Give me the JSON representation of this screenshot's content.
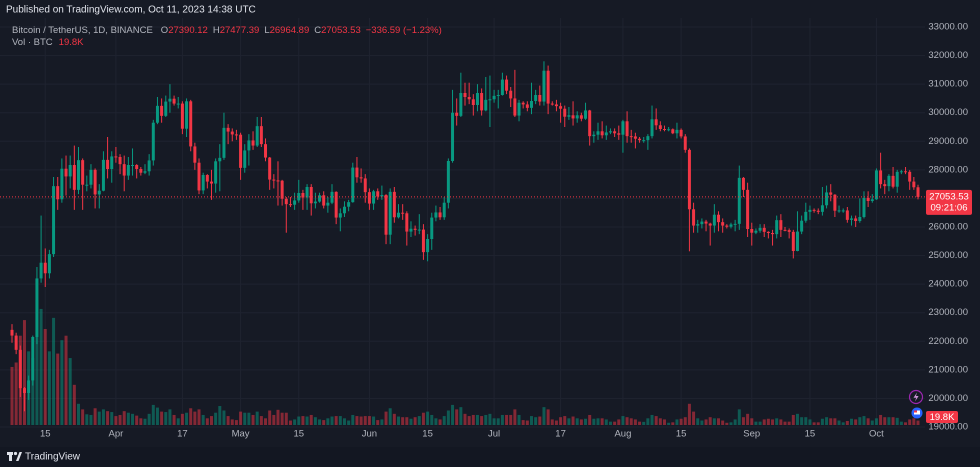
{
  "header": {
    "published": "Published on TradingView.com, Oct 11, 2023 14:38 UTC"
  },
  "footer": {
    "brand": "TradingView"
  },
  "chart_data": {
    "type": "candlestick",
    "title": "Bitcoin / TetherUS, 1D, BINANCE",
    "ohlc_letters": [
      "O",
      "H",
      "L",
      "C"
    ],
    "change": "−336.59 (−1.23%)",
    "volume_title": "Vol · BTC",
    "volume_last_label": "19.8K",
    "countdown": "09:21:06",
    "up_color": "#089981",
    "down_color": "#f23645",
    "grid": true,
    "ylim": [
      18930,
      33315
    ],
    "yticks": [
      {
        "value": 19000,
        "label": "19000.00"
      },
      {
        "value": 20000,
        "label": "20000.00"
      },
      {
        "value": 21000,
        "label": "21000.00"
      },
      {
        "value": 22000,
        "label": "22000.00"
      },
      {
        "value": 23000,
        "label": "23000.00"
      },
      {
        "value": 24000,
        "label": "24000.00"
      },
      {
        "value": 25000,
        "label": "25000.00"
      },
      {
        "value": 26000,
        "label": "26000.00"
      },
      {
        "value": 27000,
        "label": "27000.00"
      },
      {
        "value": 28000,
        "label": "28000.00"
      },
      {
        "value": 29000,
        "label": "29000.00"
      },
      {
        "value": 30000,
        "label": "30000.00"
      },
      {
        "value": 31000,
        "label": "31000.00"
      },
      {
        "value": 32000,
        "label": "32000.00"
      },
      {
        "value": 33000,
        "label": "33000.00"
      }
    ],
    "categories": [
      null,
      null,
      null,
      null,
      null,
      null,
      null,
      null,
      "15",
      null,
      null,
      null,
      null,
      null,
      null,
      null,
      null,
      null,
      null,
      null,
      null,
      null,
      null,
      null,
      null,
      "Apr",
      null,
      null,
      null,
      null,
      null,
      null,
      null,
      null,
      null,
      null,
      null,
      null,
      null,
      null,
      null,
      "17",
      null,
      null,
      null,
      null,
      null,
      null,
      null,
      null,
      null,
      null,
      null,
      null,
      null,
      "May",
      null,
      null,
      null,
      null,
      null,
      null,
      null,
      null,
      null,
      null,
      null,
      null,
      null,
      "15",
      null,
      null,
      null,
      null,
      null,
      null,
      null,
      null,
      null,
      null,
      null,
      null,
      null,
      null,
      null,
      null,
      "Jun",
      null,
      null,
      null,
      null,
      null,
      null,
      null,
      null,
      null,
      null,
      null,
      null,
      null,
      "15",
      null,
      null,
      null,
      null,
      null,
      null,
      null,
      null,
      null,
      null,
      null,
      null,
      null,
      null,
      null,
      "Jul",
      null,
      null,
      null,
      null,
      null,
      null,
      null,
      null,
      null,
      null,
      null,
      null,
      null,
      null,
      null,
      "17",
      null,
      null,
      null,
      null,
      null,
      null,
      null,
      null,
      null,
      null,
      null,
      null,
      null,
      null,
      "Aug",
      null,
      null,
      null,
      null,
      null,
      null,
      null,
      null,
      null,
      null,
      null,
      null,
      null,
      "15",
      null,
      null,
      null,
      null,
      null,
      null,
      null,
      null,
      null,
      null,
      null,
      null,
      null,
      null,
      null,
      null,
      "Sep",
      null,
      null,
      null,
      null,
      null,
      null,
      null,
      null,
      null,
      null,
      null,
      null,
      null,
      "15",
      null,
      null,
      null,
      null,
      null,
      null,
      null,
      null,
      null,
      null,
      null,
      null,
      null,
      null,
      null,
      "Oct",
      null,
      null,
      null,
      null,
      null,
      null,
      null,
      null,
      null,
      null
    ],
    "open": [
      22400,
      22200,
      21700,
      20360,
      20190,
      20630,
      22150,
      24200,
      24750,
      24380,
      25050,
      27430,
      26970,
      28040,
      27770,
      28170,
      27300,
      28340,
      27480,
      27480,
      28000,
      27140,
      27270,
      28350,
      28030,
      28470,
      28450,
      28200,
      27800,
      28170,
      28170,
      28030,
      27900,
      27950,
      28330,
      29650,
      30240,
      29890,
      30390,
      30490,
      30320,
      30320,
      29440,
      30400,
      28820,
      28250,
      27280,
      27820,
      27590,
      27520,
      28300,
      28420,
      29470,
      29340,
      29240,
      29230,
      28070,
      28680,
      29030,
      28850,
      29530,
      28900,
      28430,
      27660,
      27630,
      27620,
      26990,
      26800,
      26780,
      26930,
      27190,
      27030,
      27400,
      26830,
      26890,
      27110,
      26750,
      26850,
      27230,
      26330,
      26480,
      26710,
      26870,
      28080,
      27740,
      27700,
      27220,
      26820,
      27250,
      27070,
      27120,
      25730,
      27230,
      26340,
      26500,
      26480,
      25840,
      25940,
      25900,
      25910,
      25120,
      25580,
      26330,
      26510,
      26340,
      26850,
      28310,
      30000,
      29890,
      30690,
      30550,
      30470,
      30270,
      30690,
      30080,
      30450,
      30470,
      30590,
      30620,
      31160,
      30770,
      30500,
      29900,
      30350,
      30290,
      30170,
      30410,
      30620,
      30390,
      31470,
      30320,
      30290,
      30230,
      30140,
      29860,
      29910,
      29800,
      29910,
      29790,
      30080,
      29180,
      29230,
      29350,
      29210,
      29310,
      29350,
      29280,
      29230,
      29700,
      29180,
      29170,
      29090,
      29040,
      29040,
      29180,
      29770,
      29560,
      29430,
      29400,
      29420,
      29280,
      29400,
      29170,
      28700,
      26620,
      26050,
      26100,
      26190,
      26120,
      26050,
      26430,
      26170,
      26050,
      26010,
      26090,
      26110,
      27720,
      27300,
      25930,
      25800,
      25870,
      25970,
      25830,
      25790,
      25750,
      26240,
      25900,
      25890,
      25830,
      25160,
      25840,
      26220,
      26530,
      26600,
      26570,
      26530,
      26760,
      27210,
      27130,
      26570,
      26580,
      26580,
      26250,
      26300,
      26210,
      26350,
      27020,
      26910,
      26970,
      27980,
      27500,
      27430,
      27790,
      27410,
      27930,
      27950,
      27930,
      27590,
      27390.12
    ],
    "high": [
      22600,
      22300,
      21850,
      20400,
      20800,
      22200,
      24600,
      26400,
      25250,
      25200,
      27750,
      27750,
      28400,
      28500,
      28500,
      28850,
      28800,
      28400,
      27800,
      28200,
      28050,
      27500,
      28650,
      29150,
      28650,
      28800,
      28550,
      28500,
      28450,
      28750,
      28200,
      28100,
      28200,
      28550,
      29750,
      30550,
      30500,
      30600,
      31000,
      30600,
      30550,
      30400,
      30500,
      30450,
      28950,
      28400,
      27900,
      27850,
      28000,
      28400,
      28900,
      30000,
      29600,
      29450,
      29400,
      29300,
      28900,
      29250,
      29350,
      29850,
      29850,
      29100,
      28450,
      27850,
      28300,
      27650,
      27050,
      27050,
      27200,
      27650,
      27300,
      27500,
      27500,
      27200,
      27200,
      27250,
      27050,
      27500,
      27250,
      26650,
      26900,
      26950,
      28250,
      28450,
      28050,
      27850,
      27350,
      27300,
      27350,
      27450,
      27150,
      27350,
      27400,
      26800,
      26800,
      26550,
      26200,
      26050,
      26450,
      26100,
      25750,
      26500,
      26750,
      26700,
      27050,
      28400,
      30800,
      30500,
      31400,
      31050,
      31050,
      30650,
      31000,
      30850,
      31250,
      31300,
      30800,
      30800,
      31400,
      31300,
      30900,
      31500,
      30450,
      30400,
      30400,
      31050,
      30800,
      30950,
      31800,
      31650,
      30400,
      30450,
      30350,
      30250,
      30200,
      30400,
      30050,
      30000,
      30350,
      30100,
      29350,
      29650,
      29700,
      29550,
      29450,
      29450,
      29550,
      29750,
      30050,
      29400,
      29300,
      29150,
      29150,
      29250,
      30250,
      30150,
      29700,
      29550,
      29500,
      29450,
      29650,
      29450,
      29250,
      28750,
      26850,
      26250,
      26300,
      26250,
      26150,
      26800,
      26550,
      26300,
      26100,
      26150,
      26250,
      28150,
      27750,
      27550,
      26150,
      25950,
      26100,
      26100,
      25850,
      25900,
      26400,
      26450,
      26000,
      25950,
      25900,
      26550,
      26400,
      26850,
      26750,
      26650,
      26650,
      27400,
      27450,
      27500,
      27150,
      26750,
      26650,
      26700,
      26400,
      26400,
      27000,
      27250,
      27250,
      27150,
      28050,
      28600,
      27650,
      27850,
      28100,
      28000,
      28000,
      28100,
      27990,
      27750,
      27477.39
    ],
    "low": [
      21950,
      21550,
      20050,
      19550,
      19950,
      20450,
      21900,
      24050,
      23900,
      24200,
      24950,
      26600,
      26850,
      27100,
      27350,
      26600,
      27150,
      26600,
      27250,
      27350,
      26650,
      26650,
      27250,
      27700,
      27550,
      28250,
      27850,
      27250,
      27650,
      27800,
      27700,
      27800,
      27850,
      27800,
      28150,
      29600,
      29650,
      29850,
      30000,
      30250,
      30150,
      29250,
      29150,
      28650,
      28000,
      27150,
      27150,
      27350,
      26950,
      27200,
      27250,
      28350,
      28900,
      29000,
      29050,
      27650,
      27900,
      28150,
      28700,
      28800,
      28800,
      28300,
      27300,
      27350,
      26750,
      26750,
      25800,
      26700,
      26600,
      26850,
      26600,
      26600,
      26400,
      26650,
      26850,
      26650,
      26500,
      26800,
      26100,
      25850,
      26350,
      26550,
      26850,
      27550,
      27550,
      26850,
      26600,
      26600,
      26950,
      26950,
      25400,
      25400,
      26150,
      26300,
      26250,
      25350,
      25650,
      25700,
      25750,
      24850,
      24800,
      25200,
      26200,
      26250,
      26250,
      26650,
      28250,
      29550,
      29850,
      30250,
      30300,
      29900,
      30050,
      29900,
      30050,
      29500,
      30350,
      30150,
      30600,
      30650,
      30200,
      29850,
      29700,
      30150,
      30050,
      29950,
      30300,
      30250,
      30250,
      29950,
      30250,
      30050,
      29650,
      29500,
      29750,
      29550,
      29650,
      29700,
      29750,
      28850,
      28950,
      29050,
      29100,
      29050,
      29250,
      29150,
      29050,
      28600,
      28950,
      28950,
      28750,
      28950,
      28950,
      28700,
      29100,
      29400,
      29350,
      29350,
      29350,
      29250,
      29100,
      29100,
      28600,
      25150,
      25800,
      25800,
      25950,
      25850,
      25350,
      25800,
      25850,
      25800,
      25950,
      25950,
      25850,
      25900,
      27050,
      25650,
      25350,
      25750,
      25800,
      25650,
      25600,
      25350,
      25600,
      25650,
      25850,
      25600,
      24900,
      25150,
      25750,
      26150,
      26250,
      26500,
      26450,
      26400,
      26650,
      26900,
      26350,
      26500,
      26500,
      26150,
      26050,
      26000,
      26150,
      26300,
      26700,
      26850,
      26950,
      27350,
      27150,
      27250,
      27350,
      27200,
      27850,
      27850,
      27300,
      27300,
      26964.89
    ],
    "close": [
      22200,
      21700,
      20360,
      20190,
      20630,
      22150,
      24200,
      24750,
      24380,
      25050,
      27430,
      26970,
      28040,
      27770,
      28170,
      27300,
      28340,
      27480,
      27480,
      28000,
      27140,
      27270,
      28350,
      28030,
      28470,
      28450,
      28200,
      27800,
      28170,
      28170,
      28030,
      27900,
      27950,
      28330,
      29650,
      30240,
      29890,
      30390,
      30490,
      30320,
      30320,
      29440,
      30400,
      28820,
      28250,
      27280,
      27820,
      27590,
      27520,
      28300,
      28420,
      29470,
      29340,
      29240,
      29230,
      28070,
      28680,
      29030,
      28850,
      29530,
      28900,
      28430,
      27660,
      27630,
      27620,
      26990,
      26800,
      26780,
      26930,
      27190,
      27030,
      27400,
      26830,
      26890,
      27110,
      26750,
      26850,
      27230,
      26330,
      26480,
      26710,
      26870,
      28080,
      27740,
      27700,
      27220,
      26820,
      27250,
      27070,
      27120,
      25730,
      27230,
      26340,
      26500,
      26480,
      25840,
      25940,
      25900,
      25910,
      25120,
      25580,
      26330,
      26510,
      26340,
      26850,
      28310,
      30000,
      29890,
      30690,
      30550,
      30470,
      30270,
      30690,
      30080,
      30450,
      30470,
      30590,
      30620,
      31160,
      30770,
      30500,
      29900,
      30350,
      30290,
      30170,
      30410,
      30620,
      30390,
      31470,
      30320,
      30290,
      30230,
      30140,
      29860,
      29910,
      29800,
      29910,
      29790,
      30080,
      29180,
      29230,
      29350,
      29210,
      29310,
      29350,
      29280,
      29230,
      29700,
      29180,
      29170,
      29090,
      29040,
      29040,
      29180,
      29770,
      29560,
      29430,
      29400,
      29420,
      29280,
      29400,
      29170,
      28700,
      26620,
      26050,
      26100,
      26190,
      26120,
      26050,
      26430,
      26170,
      26050,
      26010,
      26090,
      26110,
      27720,
      27300,
      25930,
      25800,
      25870,
      25970,
      25830,
      25790,
      25750,
      26240,
      25900,
      25890,
      25830,
      25160,
      25840,
      26220,
      26530,
      26600,
      26570,
      26530,
      26760,
      27210,
      27130,
      26570,
      26580,
      26580,
      26250,
      26300,
      26210,
      26350,
      27020,
      26910,
      26970,
      27980,
      27500,
      27430,
      27790,
      27410,
      27930,
      27950,
      27930,
      27590,
      27390.12,
      27053.53
    ],
    "volume": [
      260000,
      280000,
      400000,
      470000,
      330000,
      300000,
      560000,
      520000,
      430000,
      330000,
      480000,
      320000,
      380000,
      400000,
      300000,
      180000,
      95000,
      70000,
      48000,
      45000,
      75000,
      60000,
      70000,
      62000,
      58000,
      40000,
      45000,
      62000,
      55000,
      50000,
      42000,
      30000,
      28000,
      50000,
      90000,
      78000,
      60000,
      58000,
      70000,
      45000,
      30000,
      50000,
      55000,
      75000,
      60000,
      70000,
      45000,
      30000,
      40000,
      55000,
      85000,
      65000,
      40000,
      25000,
      22000,
      60000,
      55000,
      55000,
      45000,
      60000,
      40000,
      30000,
      65000,
      45000,
      68000,
      55000,
      55000,
      20000,
      25000,
      38000,
      40000,
      38000,
      45000,
      35000,
      25000,
      22000,
      30000,
      38000,
      40000,
      40000,
      30000,
      20000,
      45000,
      40000,
      38000,
      40000,
      40000,
      38000,
      22000,
      25000,
      60000,
      75000,
      50000,
      38000,
      35000,
      35000,
      28000,
      35000,
      40000,
      55000,
      60000,
      45000,
      30000,
      25000,
      40000,
      65000,
      90000,
      70000,
      80000,
      50000,
      40000,
      45000,
      45000,
      40000,
      45000,
      50000,
      30000,
      30000,
      45000,
      45000,
      45000,
      70000,
      45000,
      22000,
      20000,
      40000,
      35000,
      38000,
      80000,
      70000,
      25000,
      20000,
      35000,
      40000,
      30000,
      38000,
      30000,
      25000,
      28000,
      45000,
      28000,
      30000,
      30000,
      25000,
      15000,
      15000,
      25000,
      40000,
      35000,
      30000,
      25000,
      15000,
      14000,
      30000,
      45000,
      40000,
      30000,
      25000,
      10000,
      12000,
      25000,
      28000,
      35000,
      95000,
      60000,
      30000,
      20000,
      25000,
      35000,
      30000,
      30000,
      20000,
      10000,
      12000,
      25000,
      70000,
      35000,
      50000,
      30000,
      15000,
      15000,
      25000,
      28000,
      25000,
      30000,
      25000,
      15000,
      15000,
      45000,
      50000,
      35000,
      35000,
      25000,
      12000,
      12000,
      28000,
      35000,
      30000,
      30000,
      20000,
      12000,
      18000,
      28000,
      25000,
      35000,
      40000,
      30000,
      20000,
      30000,
      45000,
      35000,
      35000,
      35000,
      32000,
      15000,
      12000,
      25000,
      30000,
      19800
    ]
  }
}
